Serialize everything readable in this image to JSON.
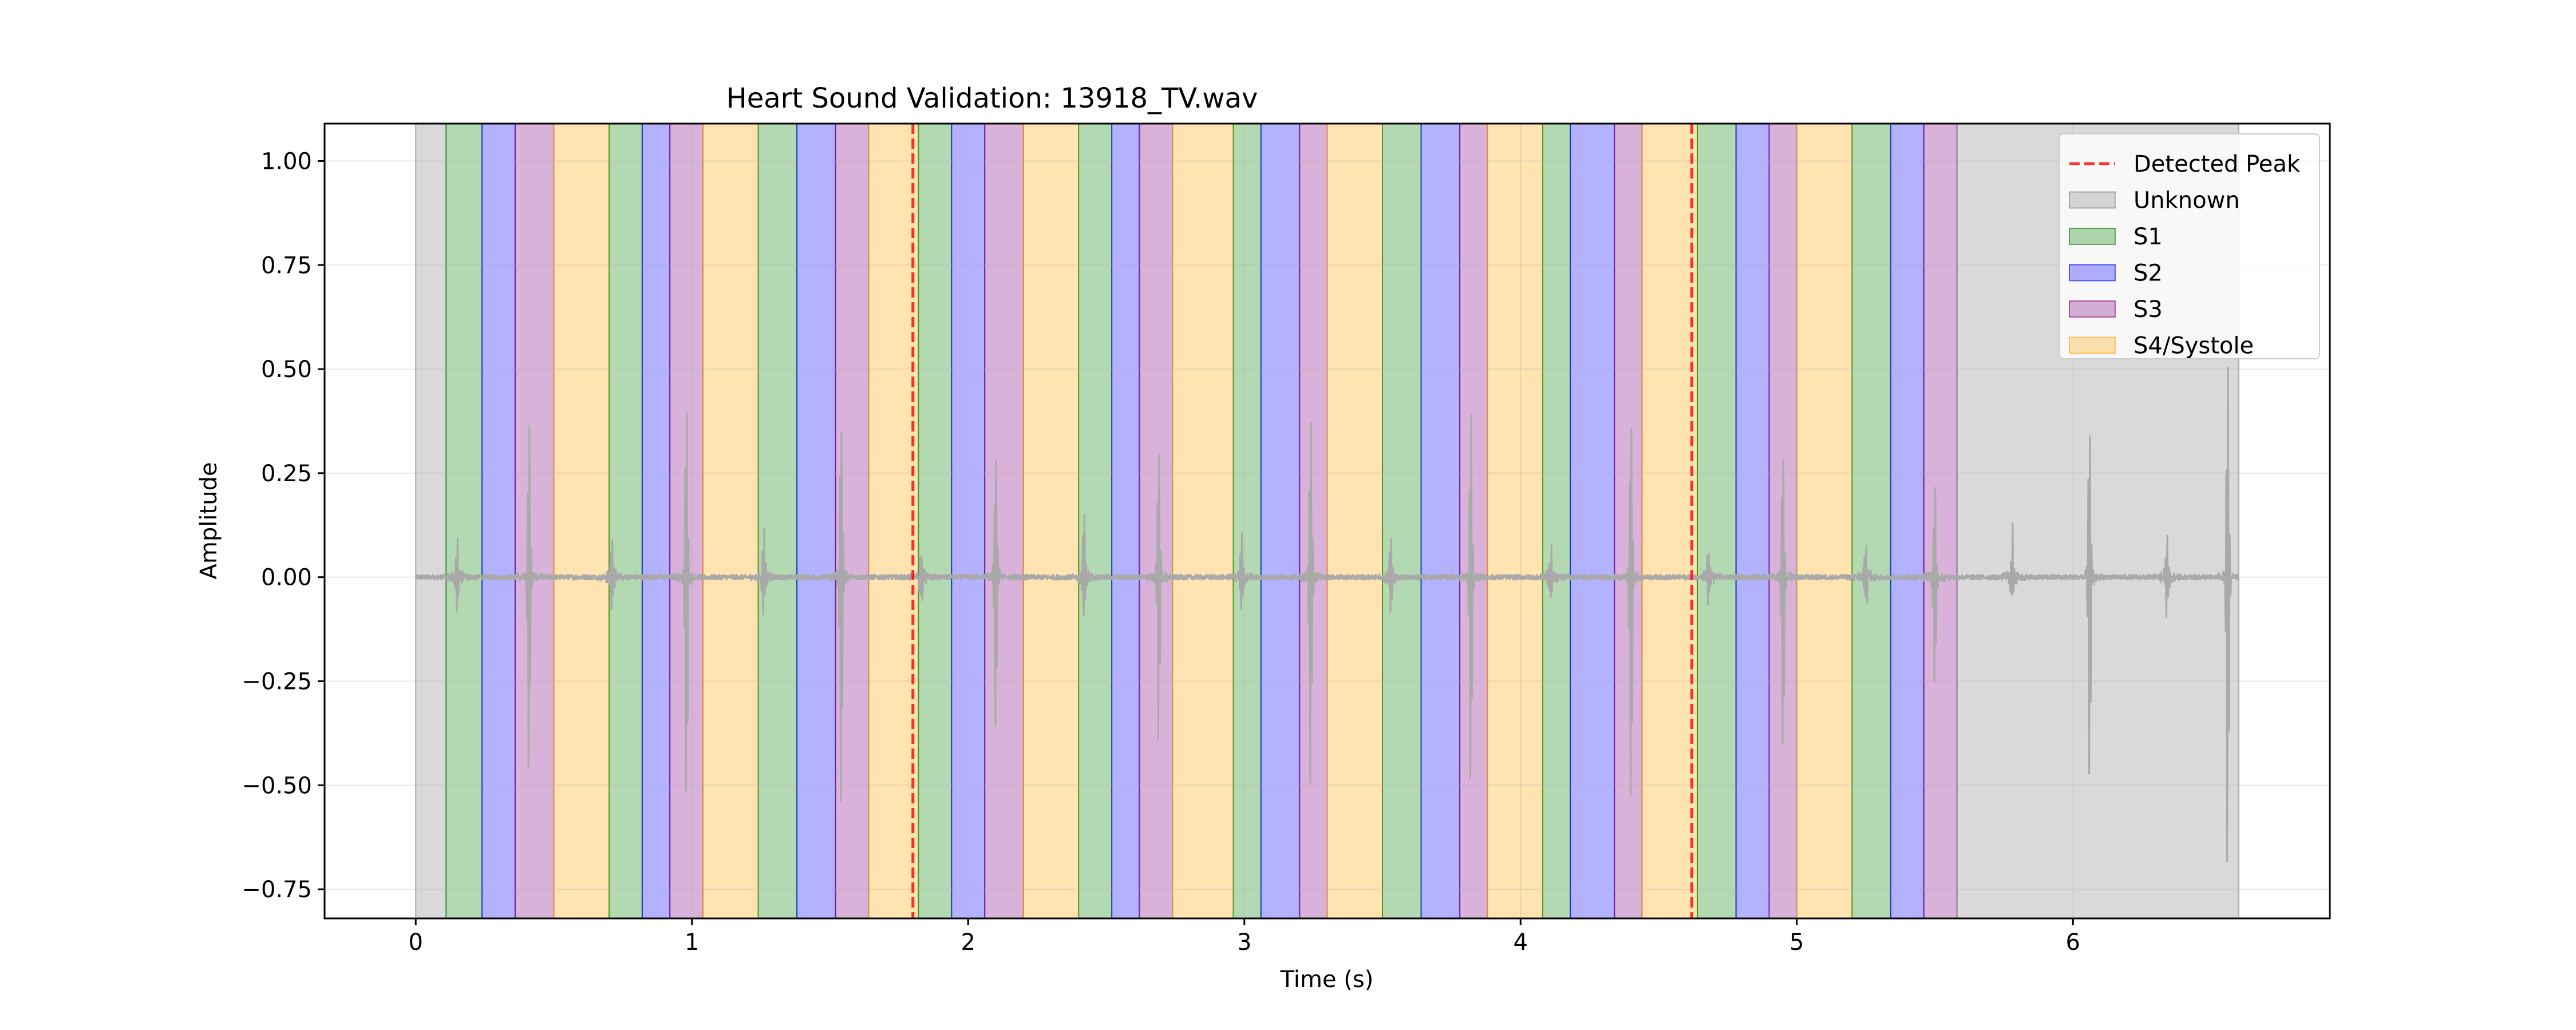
{
  "chart_data": {
    "type": "area",
    "title": "Heart Sound Validation: 13918_TV.wav",
    "xlabel": "Time (s)",
    "ylabel": "Amplitude",
    "xlim": [
      -0.33,
      6.93
    ],
    "ylim": [
      -0.82,
      1.09
    ],
    "xticks": [
      0,
      1,
      2,
      3,
      4,
      5,
      6
    ],
    "xtick_labels": [
      "0",
      "1",
      "2",
      "3",
      "4",
      "5",
      "6"
    ],
    "yticks": [
      -0.75,
      -0.5,
      -0.25,
      0.0,
      0.25,
      0.5,
      0.75,
      1.0
    ],
    "ytick_labels": [
      "−0.75",
      "−0.50",
      "−0.25",
      "0.00",
      "0.25",
      "0.50",
      "0.75",
      "1.00"
    ],
    "grid": true,
    "legend_position": "top-right",
    "legend": [
      {
        "label": "Detected Peak",
        "kind": "dashed-line",
        "color": "#ff0000"
      },
      {
        "label": "Unknown",
        "kind": "patch",
        "color": "#808080"
      },
      {
        "label": "S1",
        "kind": "patch",
        "color": "#008000"
      },
      {
        "label": "S2",
        "kind": "patch",
        "color": "#0000ff"
      },
      {
        "label": "S3",
        "kind": "patch",
        "color": "#800080"
      },
      {
        "label": "S4/Systole",
        "kind": "patch",
        "color": "#ffa500"
      }
    ],
    "state_colors": {
      "Unknown": "#808080",
      "S1": "#008000",
      "S2": "#0000ff",
      "S3": "#800080",
      "S4/Systole": "#ffa500"
    },
    "segments": [
      {
        "state": "Unknown",
        "start": 0.0,
        "end": 0.11
      },
      {
        "state": "S1",
        "start": 0.11,
        "end": 0.24
      },
      {
        "state": "S2",
        "start": 0.24,
        "end": 0.36
      },
      {
        "state": "S3",
        "start": 0.36,
        "end": 0.5
      },
      {
        "state": "S4/Systole",
        "start": 0.5,
        "end": 0.7
      },
      {
        "state": "S1",
        "start": 0.7,
        "end": 0.82
      },
      {
        "state": "S2",
        "start": 0.82,
        "end": 0.92
      },
      {
        "state": "S3",
        "start": 0.92,
        "end": 1.04
      },
      {
        "state": "S4/Systole",
        "start": 1.04,
        "end": 1.24
      },
      {
        "state": "S1",
        "start": 1.24,
        "end": 1.38
      },
      {
        "state": "S2",
        "start": 1.38,
        "end": 1.52
      },
      {
        "state": "S3",
        "start": 1.52,
        "end": 1.64
      },
      {
        "state": "S4/Systole",
        "start": 1.64,
        "end": 1.82
      },
      {
        "state": "S1",
        "start": 1.82,
        "end": 1.94
      },
      {
        "state": "S2",
        "start": 1.94,
        "end": 2.06
      },
      {
        "state": "S3",
        "start": 2.06,
        "end": 2.2
      },
      {
        "state": "S4/Systole",
        "start": 2.2,
        "end": 2.4
      },
      {
        "state": "S1",
        "start": 2.4,
        "end": 2.52
      },
      {
        "state": "S2",
        "start": 2.52,
        "end": 2.62
      },
      {
        "state": "S3",
        "start": 2.62,
        "end": 2.74
      },
      {
        "state": "S4/Systole",
        "start": 2.74,
        "end": 2.96
      },
      {
        "state": "S1",
        "start": 2.96,
        "end": 3.06
      },
      {
        "state": "S2",
        "start": 3.06,
        "end": 3.2
      },
      {
        "state": "S3",
        "start": 3.2,
        "end": 3.3
      },
      {
        "state": "S4/Systole",
        "start": 3.3,
        "end": 3.5
      },
      {
        "state": "S1",
        "start": 3.5,
        "end": 3.64
      },
      {
        "state": "S2",
        "start": 3.64,
        "end": 3.78
      },
      {
        "state": "S3",
        "start": 3.78,
        "end": 3.88
      },
      {
        "state": "S4/Systole",
        "start": 3.88,
        "end": 4.08
      },
      {
        "state": "S1",
        "start": 4.08,
        "end": 4.18
      },
      {
        "state": "S2",
        "start": 4.18,
        "end": 4.34
      },
      {
        "state": "S3",
        "start": 4.34,
        "end": 4.44
      },
      {
        "state": "S4/Systole",
        "start": 4.44,
        "end": 4.64
      },
      {
        "state": "S1",
        "start": 4.64,
        "end": 4.78
      },
      {
        "state": "S2",
        "start": 4.78,
        "end": 4.9
      },
      {
        "state": "S3",
        "start": 4.9,
        "end": 5.0
      },
      {
        "state": "S4/Systole",
        "start": 5.0,
        "end": 5.2
      },
      {
        "state": "S1",
        "start": 5.2,
        "end": 5.34
      },
      {
        "state": "S2",
        "start": 5.34,
        "end": 5.46
      },
      {
        "state": "S3",
        "start": 5.46,
        "end": 5.58
      },
      {
        "state": "Unknown",
        "start": 5.58,
        "end": 6.6
      }
    ],
    "detected_peaks": [
      1.8,
      4.62
    ],
    "signal": {
      "color": "#a9a9a9",
      "start": 0.0,
      "end": 6.6,
      "baseline": 0.0,
      "noise_amplitude": 0.006,
      "spikes": [
        {
          "t": 0.15,
          "max": 0.09,
          "min": -0.08
        },
        {
          "t": 0.41,
          "max": 0.41,
          "min": -0.52
        },
        {
          "t": 0.71,
          "max": 0.1,
          "min": -0.08
        },
        {
          "t": 0.98,
          "max": 0.45,
          "min": -0.61
        },
        {
          "t": 1.26,
          "max": 0.1,
          "min": -0.09
        },
        {
          "t": 1.54,
          "max": 0.43,
          "min": -0.6
        },
        {
          "t": 1.83,
          "max": 0.07,
          "min": -0.07
        },
        {
          "t": 2.1,
          "max": 0.34,
          "min": -0.41
        },
        {
          "t": 2.42,
          "max": 0.14,
          "min": -0.1
        },
        {
          "t": 2.69,
          "max": 0.35,
          "min": -0.43
        },
        {
          "t": 2.99,
          "max": 0.1,
          "min": -0.08
        },
        {
          "t": 3.24,
          "max": 0.42,
          "min": -0.56
        },
        {
          "t": 3.53,
          "max": 0.1,
          "min": -0.08
        },
        {
          "t": 3.82,
          "max": 0.41,
          "min": -0.57
        },
        {
          "t": 4.11,
          "max": 0.07,
          "min": -0.06
        },
        {
          "t": 4.4,
          "max": 0.42,
          "min": -0.6
        },
        {
          "t": 4.68,
          "max": 0.09,
          "min": -0.07
        },
        {
          "t": 4.95,
          "max": 0.35,
          "min": -0.47
        },
        {
          "t": 5.25,
          "max": 0.1,
          "min": -0.08
        },
        {
          "t": 5.5,
          "max": 0.23,
          "min": -0.32
        },
        {
          "t": 5.78,
          "max": 0.11,
          "min": -0.07
        },
        {
          "t": 6.06,
          "max": 0.4,
          "min": -0.52
        },
        {
          "t": 6.34,
          "max": 0.1,
          "min": -0.08
        },
        {
          "t": 6.56,
          "max": 0.52,
          "min": -0.74
        }
      ]
    }
  }
}
